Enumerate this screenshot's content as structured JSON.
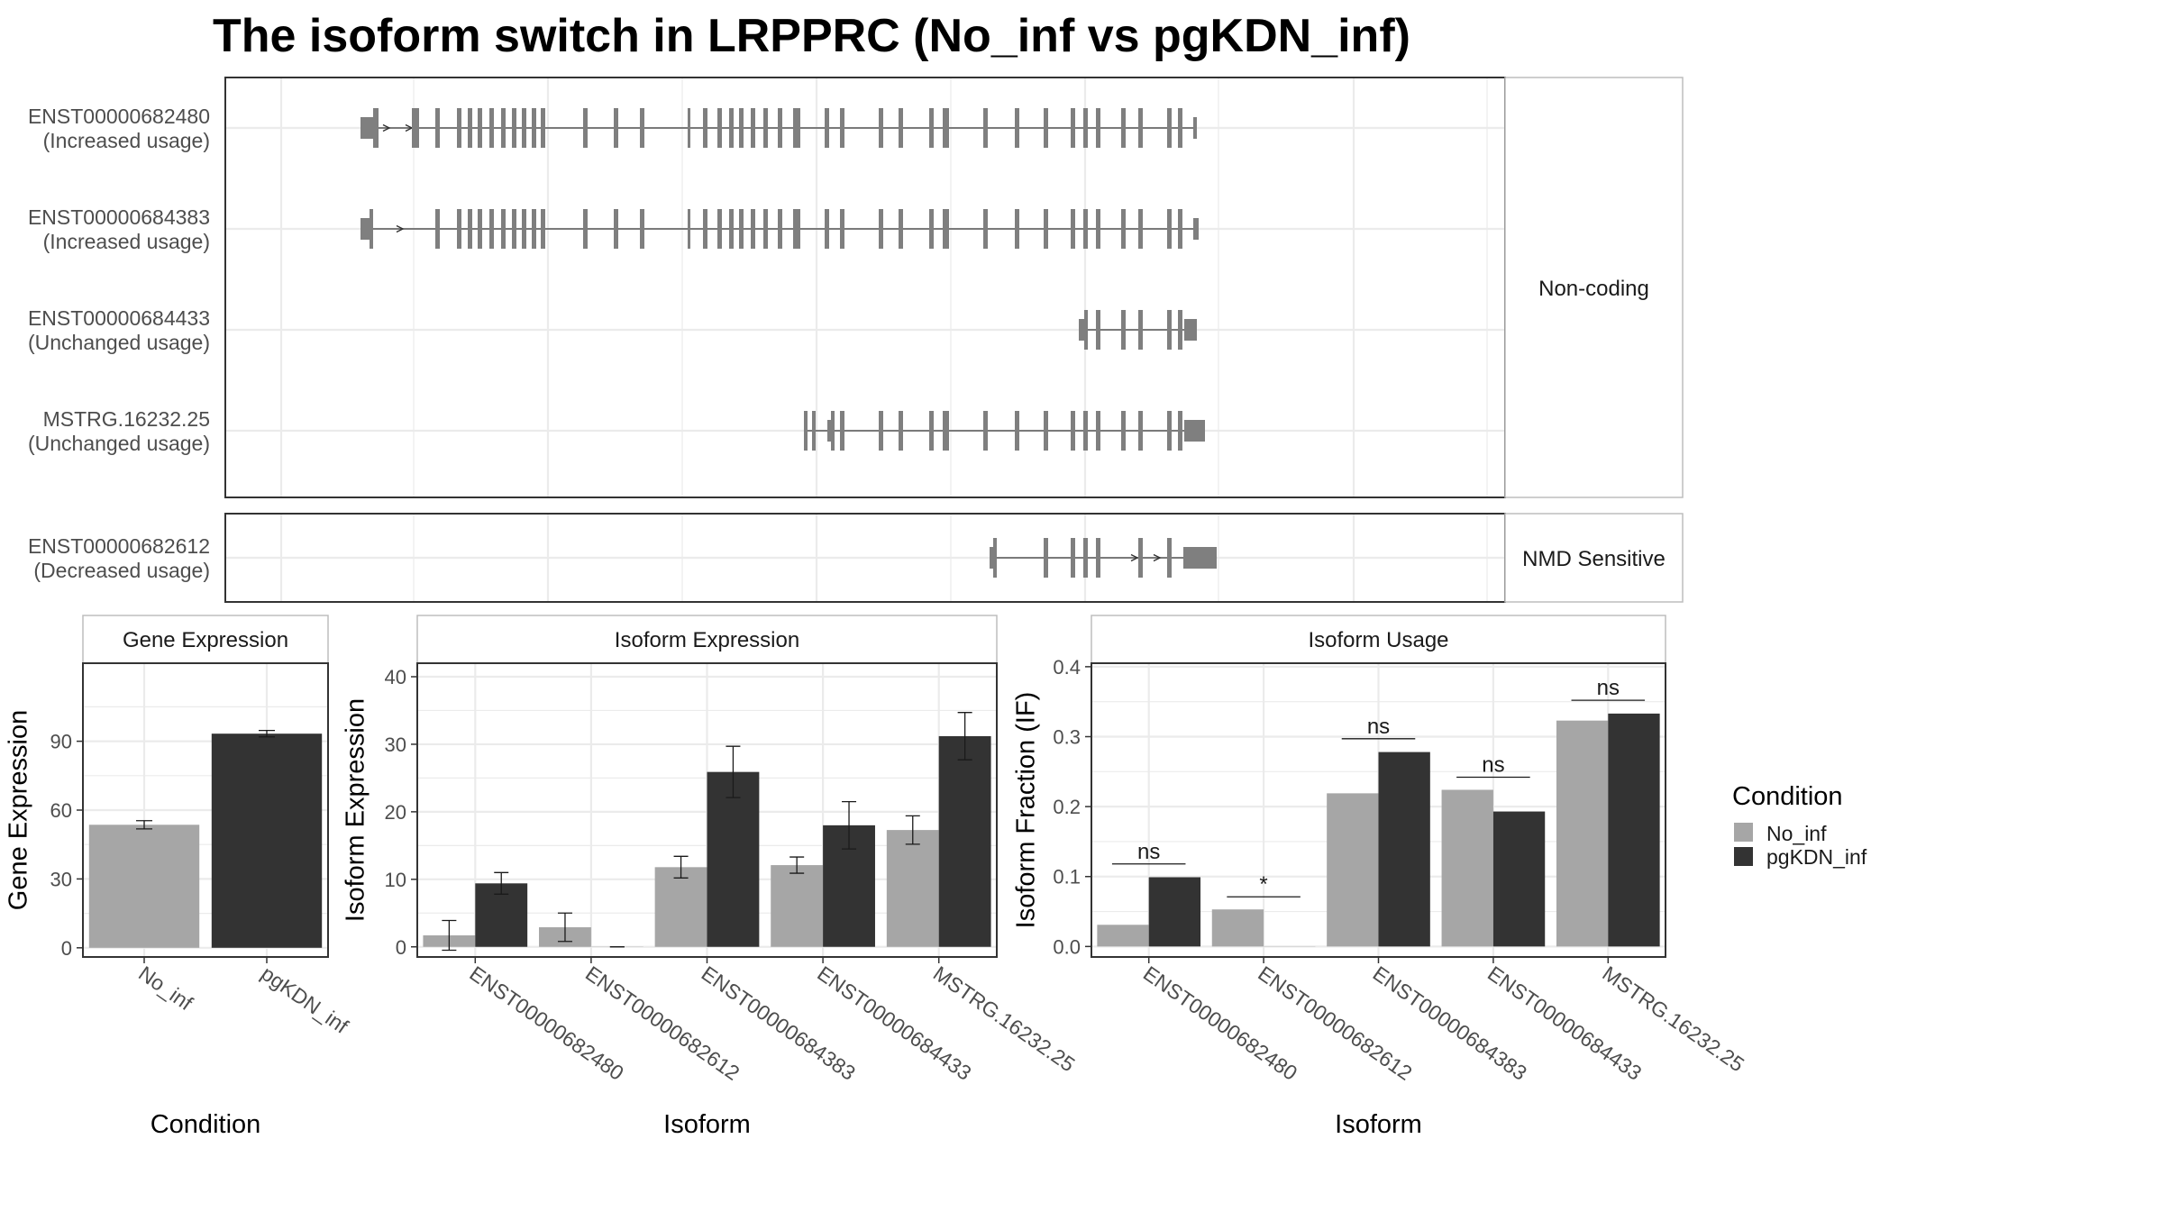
{
  "title": "The isoform switch in LRPPRC (No_inf vs pgKDN_inf)",
  "colors": {
    "no_inf": "#a6a6a6",
    "pgkdn_inf": "#333333",
    "exon": "#7f7f7f",
    "grid": "#ebebeb",
    "strip_border": "#bdbdbd",
    "panel_border": "#333333"
  },
  "structure": {
    "groups": [
      {
        "label": "Non-coding",
        "isoforms": [
          {
            "name": "ENST00000682480",
            "usage": "(Increased usage)",
            "exons": [
              [
                400,
                414,
                "s"
              ],
              [
                414,
                420,
                "t"
              ],
              [
                457,
                465,
                "t"
              ],
              [
                483,
                488,
                "t"
              ],
              [
                507,
                512,
                "t"
              ],
              [
                519,
                524,
                "t"
              ],
              [
                530,
                535,
                "t"
              ],
              [
                543,
                548,
                "t"
              ],
              [
                556,
                561,
                "t"
              ],
              [
                568,
                573,
                "t"
              ],
              [
                579,
                584,
                "t"
              ],
              [
                590,
                595,
                "t"
              ],
              [
                600,
                605,
                "t"
              ],
              [
                647,
                652,
                "t"
              ],
              [
                681,
                686,
                "t"
              ],
              [
                710,
                715,
                "t"
              ],
              [
                763,
                766,
                "t"
              ],
              [
                780,
                785,
                "t"
              ],
              [
                796,
                801,
                "t"
              ],
              [
                809,
                814,
                "t"
              ],
              [
                820,
                825,
                "t"
              ],
              [
                833,
                838,
                "t"
              ],
              [
                847,
                852,
                "t"
              ],
              [
                863,
                868,
                "t"
              ],
              [
                880,
                888,
                "t"
              ],
              [
                915,
                920,
                "t"
              ],
              [
                932,
                937,
                "t"
              ],
              [
                975,
                980,
                "t"
              ],
              [
                997,
                1002,
                "t"
              ],
              [
                1031,
                1036,
                "t"
              ],
              [
                1046,
                1053,
                "t"
              ],
              [
                1091,
                1096,
                "t"
              ],
              [
                1126,
                1131,
                "t"
              ],
              [
                1158,
                1163,
                "t"
              ],
              [
                1188,
                1193,
                "t"
              ],
              [
                1202,
                1207,
                "t"
              ],
              [
                1216,
                1221,
                "t"
              ],
              [
                1244,
                1249,
                "t"
              ],
              [
                1263,
                1268,
                "t"
              ],
              [
                1295,
                1300,
                "t"
              ],
              [
                1307,
                1312,
                "t"
              ],
              [
                1324,
                1328,
                "s"
              ]
            ],
            "arrows": [
              430,
              455
            ]
          },
          {
            "name": "ENST00000684383",
            "usage": "(Increased usage)",
            "exons": [
              [
                400,
                410,
                "s"
              ],
              [
                410,
                414,
                "t"
              ],
              [
                483,
                488,
                "t"
              ],
              [
                507,
                512,
                "t"
              ],
              [
                519,
                524,
                "t"
              ],
              [
                530,
                535,
                "t"
              ],
              [
                543,
                548,
                "t"
              ],
              [
                556,
                561,
                "t"
              ],
              [
                568,
                573,
                "t"
              ],
              [
                579,
                584,
                "t"
              ],
              [
                590,
                595,
                "t"
              ],
              [
                600,
                605,
                "t"
              ],
              [
                647,
                652,
                "t"
              ],
              [
                681,
                686,
                "t"
              ],
              [
                710,
                715,
                "t"
              ],
              [
                763,
                766,
                "t"
              ],
              [
                780,
                785,
                "t"
              ],
              [
                796,
                801,
                "t"
              ],
              [
                809,
                814,
                "t"
              ],
              [
                820,
                825,
                "t"
              ],
              [
                833,
                838,
                "t"
              ],
              [
                847,
                852,
                "t"
              ],
              [
                863,
                868,
                "t"
              ],
              [
                880,
                888,
                "t"
              ],
              [
                915,
                920,
                "t"
              ],
              [
                932,
                937,
                "t"
              ],
              [
                975,
                980,
                "t"
              ],
              [
                997,
                1002,
                "t"
              ],
              [
                1031,
                1036,
                "t"
              ],
              [
                1046,
                1053,
                "t"
              ],
              [
                1091,
                1096,
                "t"
              ],
              [
                1126,
                1131,
                "t"
              ],
              [
                1158,
                1163,
                "t"
              ],
              [
                1188,
                1193,
                "t"
              ],
              [
                1202,
                1207,
                "t"
              ],
              [
                1216,
                1221,
                "t"
              ],
              [
                1244,
                1249,
                "t"
              ],
              [
                1263,
                1268,
                "t"
              ],
              [
                1295,
                1300,
                "t"
              ],
              [
                1307,
                1312,
                "t"
              ],
              [
                1324,
                1330,
                "s"
              ]
            ],
            "arrows": [
              445
            ]
          },
          {
            "name": "ENST00000684433",
            "usage": "(Unchanged usage)",
            "exons": [
              [
                1197,
                1203,
                "s"
              ],
              [
                1203,
                1207,
                "t"
              ],
              [
                1216,
                1221,
                "t"
              ],
              [
                1244,
                1249,
                "t"
              ],
              [
                1263,
                1268,
                "t"
              ],
              [
                1295,
                1300,
                "t"
              ],
              [
                1307,
                1312,
                "t"
              ],
              [
                1314,
                1328,
                "s"
              ]
            ],
            "arrows": []
          },
          {
            "name": "MSTRG.16232.25",
            "usage": "(Unchanged usage)",
            "exons": [
              [
                892,
                896,
                "t"
              ],
              [
                901,
                905,
                "t"
              ],
              [
                918,
                922,
                "s"
              ],
              [
                922,
                926,
                "t"
              ],
              [
                932,
                937,
                "t"
              ],
              [
                975,
                980,
                "t"
              ],
              [
                997,
                1002,
                "t"
              ],
              [
                1031,
                1036,
                "t"
              ],
              [
                1046,
                1053,
                "t"
              ],
              [
                1091,
                1096,
                "t"
              ],
              [
                1126,
                1131,
                "t"
              ],
              [
                1158,
                1163,
                "t"
              ],
              [
                1188,
                1193,
                "t"
              ],
              [
                1202,
                1207,
                "t"
              ],
              [
                1216,
                1221,
                "t"
              ],
              [
                1244,
                1249,
                "t"
              ],
              [
                1263,
                1268,
                "t"
              ],
              [
                1295,
                1300,
                "t"
              ],
              [
                1307,
                1312,
                "t"
              ],
              [
                1314,
                1337,
                "s"
              ]
            ],
            "arrows": []
          }
        ]
      },
      {
        "label": "NMD Sensitive",
        "isoforms": [
          {
            "name": "ENST00000682612",
            "usage": "(Decreased usage)",
            "exons": [
              [
                1098,
                1102,
                "s"
              ],
              [
                1102,
                1106,
                "t"
              ],
              [
                1158,
                1163,
                "t"
              ],
              [
                1188,
                1193,
                "t"
              ],
              [
                1202,
                1207,
                "t"
              ],
              [
                1216,
                1221,
                "t"
              ],
              [
                1263,
                1268,
                "t"
              ],
              [
                1295,
                1300,
                "t"
              ],
              [
                1313,
                1350,
                "s"
              ]
            ],
            "arrows": [
              1260,
              1285
            ]
          }
        ]
      }
    ]
  },
  "chart_data": [
    {
      "type": "bar",
      "title": "Gene Expression",
      "xlabel": "Condition",
      "ylabel": "Gene Expression",
      "ylim": [
        -4,
        124
      ],
      "yticks": [
        0,
        30,
        60,
        90
      ],
      "grid": true,
      "categories": [
        "No_inf",
        "pgKDN_inf"
      ],
      "values": [
        53.6,
        93.3
      ],
      "error": [
        1.8,
        1.4
      ]
    },
    {
      "type": "bar",
      "title": "Isoform Expression",
      "xlabel": "Isoform",
      "ylabel": "Isoform Expression",
      "ylim": [
        -1.5,
        42
      ],
      "yticks": [
        0,
        10,
        20,
        30,
        40
      ],
      "grid": true,
      "categories": [
        "ENST00000682480",
        "ENST00000682612",
        "ENST00000684383",
        "ENST00000684433",
        "MSTRG.16232.25"
      ],
      "series": [
        {
          "name": "No_inf",
          "values": [
            1.7,
            2.9,
            11.8,
            12.1,
            17.3
          ],
          "error": [
            2.2,
            2.1,
            1.6,
            1.2,
            2.1
          ]
        },
        {
          "name": "pgKDN_inf",
          "values": [
            9.4,
            0.0,
            25.9,
            18.0,
            31.2
          ],
          "error": [
            1.6,
            0.0,
            3.8,
            3.5,
            3.5
          ]
        }
      ]
    },
    {
      "type": "bar",
      "title": "Isoform Usage",
      "xlabel": "Isoform",
      "ylabel": "Isoform Fraction (IF)",
      "ylim": [
        -0.015,
        0.405
      ],
      "yticks": [
        0.0,
        0.1,
        0.2,
        0.3,
        0.4
      ],
      "grid": true,
      "categories": [
        "ENST00000682480",
        "ENST00000682612",
        "ENST00000684383",
        "ENST00000684433",
        "MSTRG.16232.25"
      ],
      "series": [
        {
          "name": "No_inf",
          "values": [
            0.031,
            0.053,
            0.219,
            0.224,
            0.323
          ]
        },
        {
          "name": "pgKDN_inf",
          "values": [
            0.099,
            0.0,
            0.278,
            0.193,
            0.333
          ]
        }
      ],
      "annotations": [
        {
          "label": "ns",
          "y": 0.118
        },
        {
          "label": "*",
          "y": 0.071
        },
        {
          "label": "ns",
          "y": 0.297
        },
        {
          "label": "ns",
          "y": 0.242
        },
        {
          "label": "ns",
          "y": 0.352
        }
      ]
    }
  ],
  "legend": {
    "title": "Condition",
    "position": "right",
    "items": [
      "No_inf",
      "pgKDN_inf"
    ]
  }
}
